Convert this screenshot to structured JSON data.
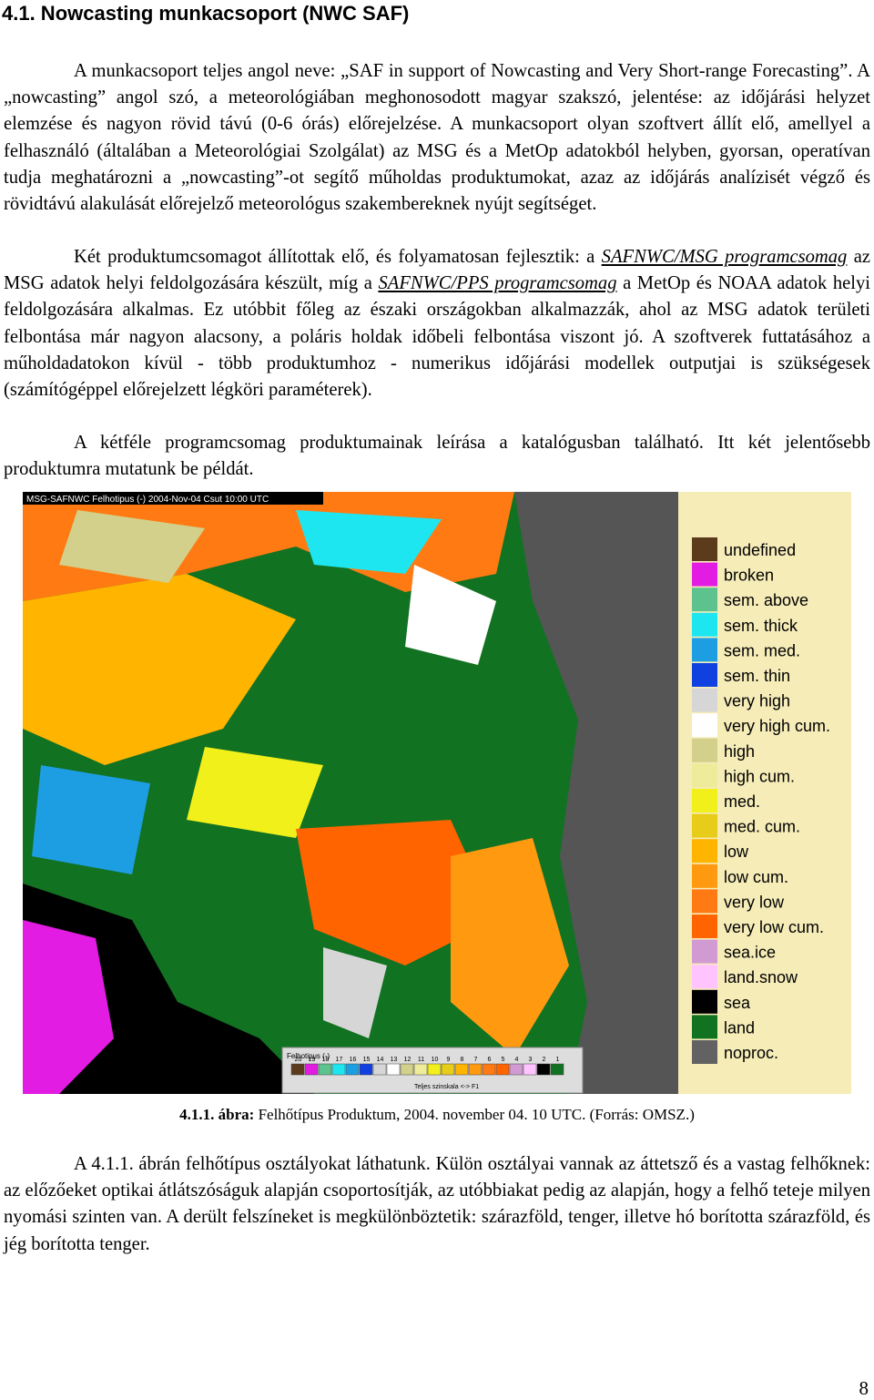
{
  "header": {
    "title": "4.1. Nowcasting munkacsoport (NWC SAF)"
  },
  "paragraphs": [
    {
      "runs": [
        {
          "text": "A munkacsoport teljes angol neve: „SAF in support of Nowcasting and Very Short-range Forecasting”. A „nowcasting” angol szó, a meteorológiában meghonosodott magyar szakszó, jelentése: az időjárási helyzet elemzése és nagyon rövid távú (0-6 órás) előrejelzése. A munkacsoport olyan szoftvert állít elő, amellyel a felhasználó (általában a Meteorológiai Szolgálat) az MSG és a MetOp adatokból helyben, gyorsan, operatívan tudja meghatározni a „nowcasting”-ot segítő műholdas produktumokat, azaz az időjárás analízisét végző és rövidtávú alakulását előrejelző meteorológus szakembereknek nyújt segítséget."
        }
      ]
    },
    {
      "runs": [
        {
          "text": "Két produktumcsomagot állítottak elő, és folyamatosan fejlesztik: a "
        },
        {
          "text": "SAFNWC/MSG programcsomag",
          "link": true
        },
        {
          "text": " az MSG adatok helyi feldolgozására készült, míg a "
        },
        {
          "text": "SAFNWC/PPS programcsomag",
          "link": true
        },
        {
          "text": " a MetOp és NOAA adatok helyi feldolgozására alkalmas. Ez utóbbit főleg az északi országokban alkalmazzák, ahol az MSG adatok területi felbontása már nagyon alacsony, a poláris holdak időbeli felbontása viszont jó. A szoftverek futtatásához a műholdadatokon kívül - több produktumhoz - numerikus időjárási modellek outputjai is szükségesek (számítógéppel előrejelzett légköri paraméterek)."
        }
      ]
    },
    {
      "runs": [
        {
          "text": "A kétféle programcsomag produktumainak leírása a katalógusban található. Itt két jelentősebb produktumra mutatunk be példát."
        }
      ]
    }
  ],
  "figure": {
    "map_title": "MSG-SAFNWC Felhotipus (-) 2004-Nov-04 Csut 10:00 UTC",
    "scale_title": "Felhotipus (-)",
    "scale_numbers": [
      "20",
      "19",
      "18",
      "17",
      "16",
      "15",
      "14",
      "13",
      "12",
      "11",
      "10",
      "9",
      "8",
      "7",
      "6",
      "5",
      "4",
      "3",
      "2",
      "1"
    ],
    "scale_note": "Teljes szinskala <-> F1",
    "legend": [
      {
        "label": "undefined",
        "color": "#5c3b1c"
      },
      {
        "label": "broken",
        "color": "#e21ce2"
      },
      {
        "label": "sem. above",
        "color": "#5ec28e"
      },
      {
        "label": "sem. thick",
        "color": "#1ee6f0"
      },
      {
        "label": "sem. med.",
        "color": "#1e9ee2"
      },
      {
        "label": "sem. thin",
        "color": "#1040e0"
      },
      {
        "label": "very high",
        "color": "#d6d6d6"
      },
      {
        "label": "very high cum.",
        "color": "#ffffff"
      },
      {
        "label": "high",
        "color": "#d2d08a"
      },
      {
        "label": "high cum.",
        "color": "#eeec9a"
      },
      {
        "label": "med.",
        "color": "#f2f01a"
      },
      {
        "label": "med. cum.",
        "color": "#e8cc1a"
      },
      {
        "label": "low",
        "color": "#ffb400"
      },
      {
        "label": "low cum.",
        "color": "#ff9a10"
      },
      {
        "label": "very low",
        "color": "#ff7a12"
      },
      {
        "label": "very low cum.",
        "color": "#ff6400"
      },
      {
        "label": "sea.ice",
        "color": "#d29ad2"
      },
      {
        "label": "land.snow",
        "color": "#ffc4ff"
      },
      {
        "label": "sea",
        "color": "#000000"
      },
      {
        "label": "land",
        "color": "#117222"
      },
      {
        "label": "noproc.",
        "color": "#626262"
      }
    ],
    "caption": {
      "label": "4.1.1. ábra:",
      "text": " Felhőtípus Produktum, 2004. november 04. 10 UTC. (Forrás: OMSZ.)"
    }
  },
  "closing": "A 4.1.1. ábrán felhőtípus osztályokat láthatunk. Külön osztályai vannak az áttetsző és a vastag felhőknek: az előzőeket optikai átlátszóságuk alapján csoportosítják, az utóbbiakat pedig az alapján, hogy a felhő teteje milyen nyomási szinten van. A derült felszíneket is megkülönböztetik: szárazföld, tenger, illetve hó borította szárazföld, és jég borította tenger.",
  "page_number": "8"
}
